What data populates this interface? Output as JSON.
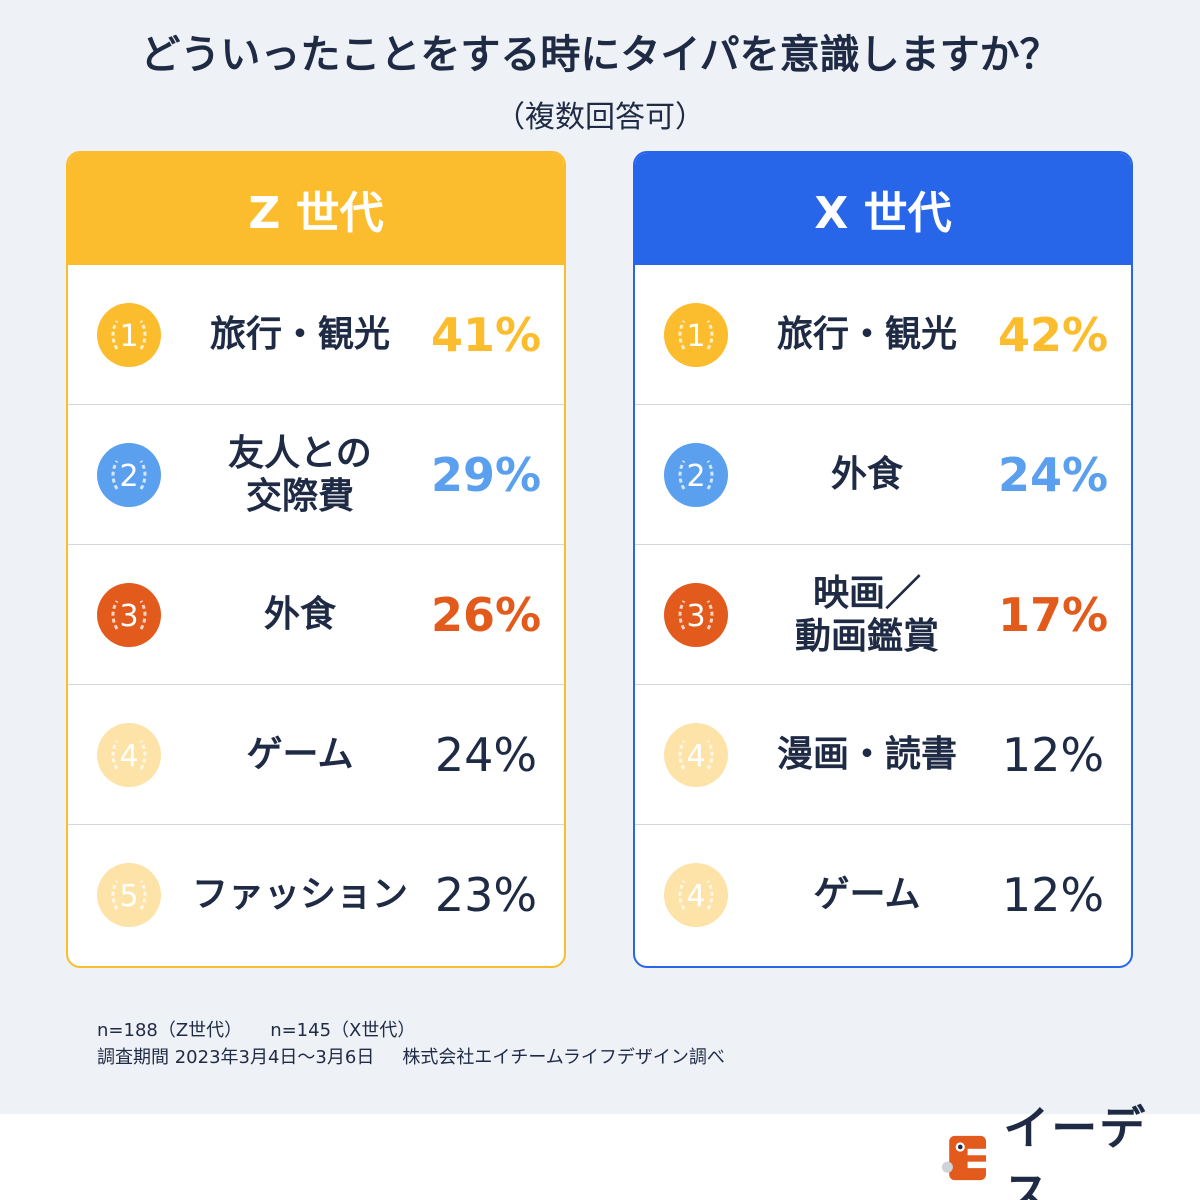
{
  "title": "どういったことをする時にタイパを意識しますか？",
  "subtitle": "（複数回答可）",
  "colors": {
    "gold": "#fbbd2e",
    "blue_medal": "#5aa0ee",
    "orange": "#e25a1c",
    "pale": "#fde3a8",
    "z_accent": "#fbbd2e",
    "x_accent": "#2766e8",
    "text": "#1f2a44"
  },
  "chart_data": [
    {
      "type": "table",
      "title": "Z 世代",
      "unit": "%",
      "rows": [
        {
          "rank": "1",
          "label": "旅行・観光",
          "value": 41,
          "value_text": "41%",
          "medal": "gold"
        },
        {
          "rank": "2",
          "label": "友人との\n交際費",
          "value": 29,
          "value_text": "29%",
          "medal": "blue_medal"
        },
        {
          "rank": "3",
          "label": "外食",
          "value": 26,
          "value_text": "26%",
          "medal": "orange"
        },
        {
          "rank": "4",
          "label": "ゲーム",
          "value": 24,
          "value_text": "24%",
          "medal": "pale"
        },
        {
          "rank": "5",
          "label": "ファッション",
          "value": 23,
          "value_text": "23%",
          "medal": "pale"
        }
      ]
    },
    {
      "type": "table",
      "title": "X 世代",
      "unit": "%",
      "rows": [
        {
          "rank": "1",
          "label": "旅行・観光",
          "value": 42,
          "value_text": "42%",
          "medal": "gold"
        },
        {
          "rank": "2",
          "label": "外食",
          "value": 24,
          "value_text": "24%",
          "medal": "blue_medal"
        },
        {
          "rank": "3",
          "label": "映画／\n動画鑑賞",
          "value": 17,
          "value_text": "17%",
          "medal": "orange"
        },
        {
          "rank": "4",
          "label": "漫画・読書",
          "value": 12,
          "value_text": "12%",
          "medal": "pale"
        },
        {
          "rank": "4",
          "label": "ゲーム",
          "value": 12,
          "value_text": "12%",
          "medal": "pale"
        }
      ]
    }
  ],
  "footnotes": {
    "n_z": "n=188（Z世代）",
    "n_x": "n=145（X世代）",
    "period": "調査期間  2023年3月4日〜3月6日",
    "source": "株式会社エイチームライフデザイン調べ"
  },
  "logo": {
    "text": "イーデス"
  }
}
